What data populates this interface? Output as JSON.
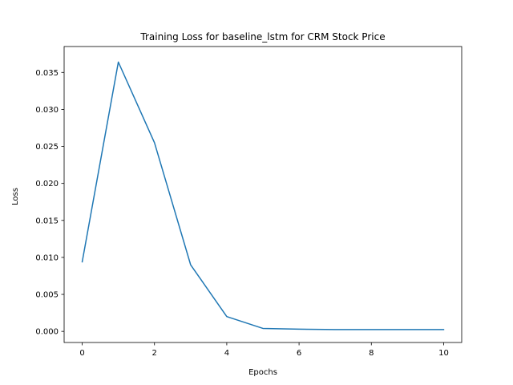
{
  "chart_data": {
    "type": "line",
    "title": "Training Loss for baseline_lstm for CRM Stock Price",
    "xlabel": "Epochs",
    "ylabel": "Loss",
    "xlim": [
      -0.5,
      10.5
    ],
    "ylim": [
      -0.0015,
      0.0385
    ],
    "xticks": [
      0,
      2,
      4,
      6,
      8,
      10
    ],
    "xtick_labels": [
      "0",
      "2",
      "4",
      "6",
      "8",
      "10"
    ],
    "yticks": [
      0.0,
      0.005,
      0.01,
      0.015,
      0.02,
      0.025,
      0.03,
      0.035
    ],
    "ytick_labels": [
      "0.000",
      "0.005",
      "0.010",
      "0.015",
      "0.020",
      "0.025",
      "0.030",
      "0.035"
    ],
    "grid": false,
    "series": [
      {
        "color": "#1f77b4",
        "x": [
          0,
          1,
          2,
          3,
          4,
          5,
          6,
          7,
          8,
          9,
          10
        ],
        "y": [
          0.0094,
          0.0364,
          0.0255,
          0.009,
          0.002,
          0.0004,
          0.0003,
          0.00025,
          0.00025,
          0.00025,
          0.00025
        ]
      }
    ]
  }
}
